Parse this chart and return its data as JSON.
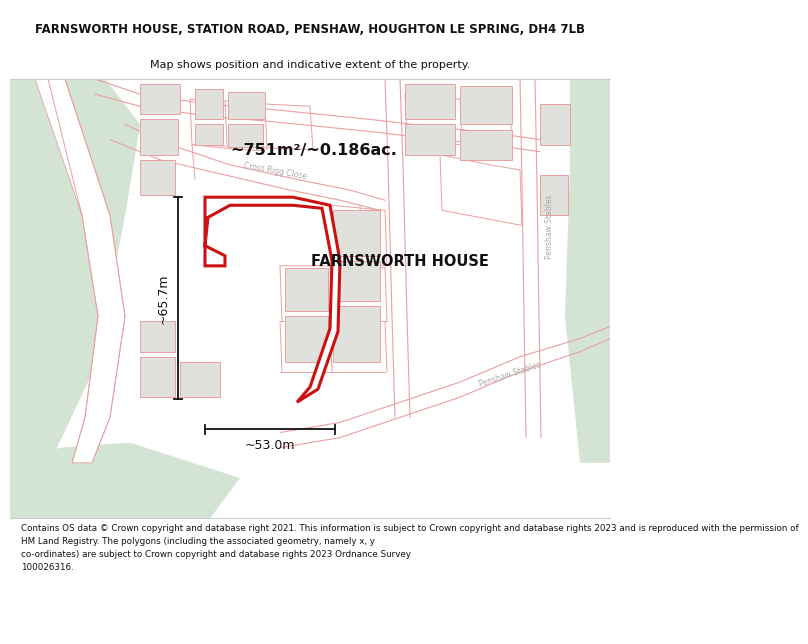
{
  "title_line1": "FARNSWORTH HOUSE, STATION ROAD, PENSHAW, HOUGHTON LE SPRING, DH4 7LB",
  "title_line2": "Map shows position and indicative extent of the property.",
  "property_label": "FARNSWORTH HOUSE",
  "area_label": "~751m²/~0.186ac.",
  "dim_width": "~53.0m",
  "dim_height": "~65.7m",
  "footer_text": "Contains OS data © Crown copyright and database right 2021. This information is subject to Crown copyright and database rights 2023 and is reproduced with the permission of\nHM Land Registry. The polygons (including the associated geometry, namely x, y\nco-ordinates) are subject to Crown copyright and database rights 2023 Ordnance Survey\n100026316.",
  "map_bg": "#ffffff",
  "road_line_color": "#e8a0a0",
  "highlight_color": "#cc1111",
  "green_color": "#d4e4d4",
  "green_road_color": "#e8ede8",
  "building_color": "#e0e0dc",
  "white": "#ffffff",
  "dim_color": "#111111",
  "road_label_color": "#aaaaaa",
  "title_color": "#111111",
  "footer_color": "#111111"
}
